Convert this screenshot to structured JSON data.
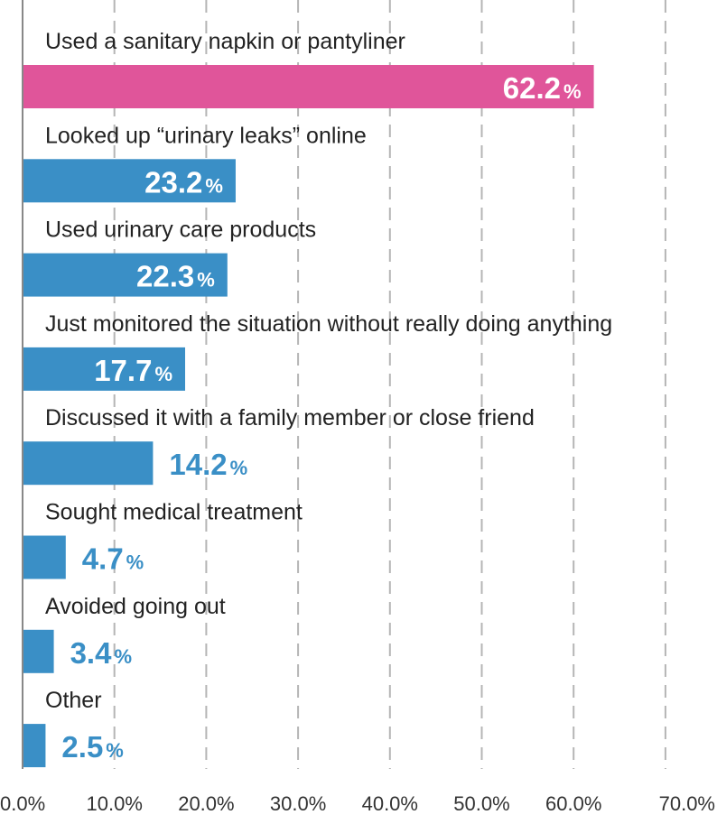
{
  "chart_data": {
    "type": "bar",
    "orientation": "horizontal",
    "categories": [
      "Used a sanitary napkin or pantyliner",
      "Looked up “urinary leaks” online",
      "Used urinary care products",
      "Just monitored the situation without really doing anything",
      "Discussed it with a family member or close friend",
      "Sought medical treatment",
      "Avoided going out",
      "Other"
    ],
    "values": [
      62.2,
      23.2,
      22.3,
      17.7,
      14.2,
      4.7,
      3.4,
      2.5
    ],
    "value_labels": [
      "62.2",
      "23.2",
      "22.3",
      "17.7",
      "14.2",
      "4.7",
      "3.4",
      "2.5"
    ],
    "value_suffix": "%",
    "xlim": [
      0,
      70
    ],
    "xticks": [
      "0.0%",
      "10.0%",
      "20.0%",
      "30.0%",
      "40.0%",
      "50.0%",
      "60.0%",
      "70.0%"
    ],
    "grid": "vertical dashed",
    "colors": {
      "highlight": "#e0559a",
      "bar": "#3a8fc6",
      "label_inside": "#ffffff",
      "label_outside": "#3a8fc6",
      "grid": "#b5b5b5",
      "axis": "#888888"
    },
    "highlight_index": 0
  }
}
